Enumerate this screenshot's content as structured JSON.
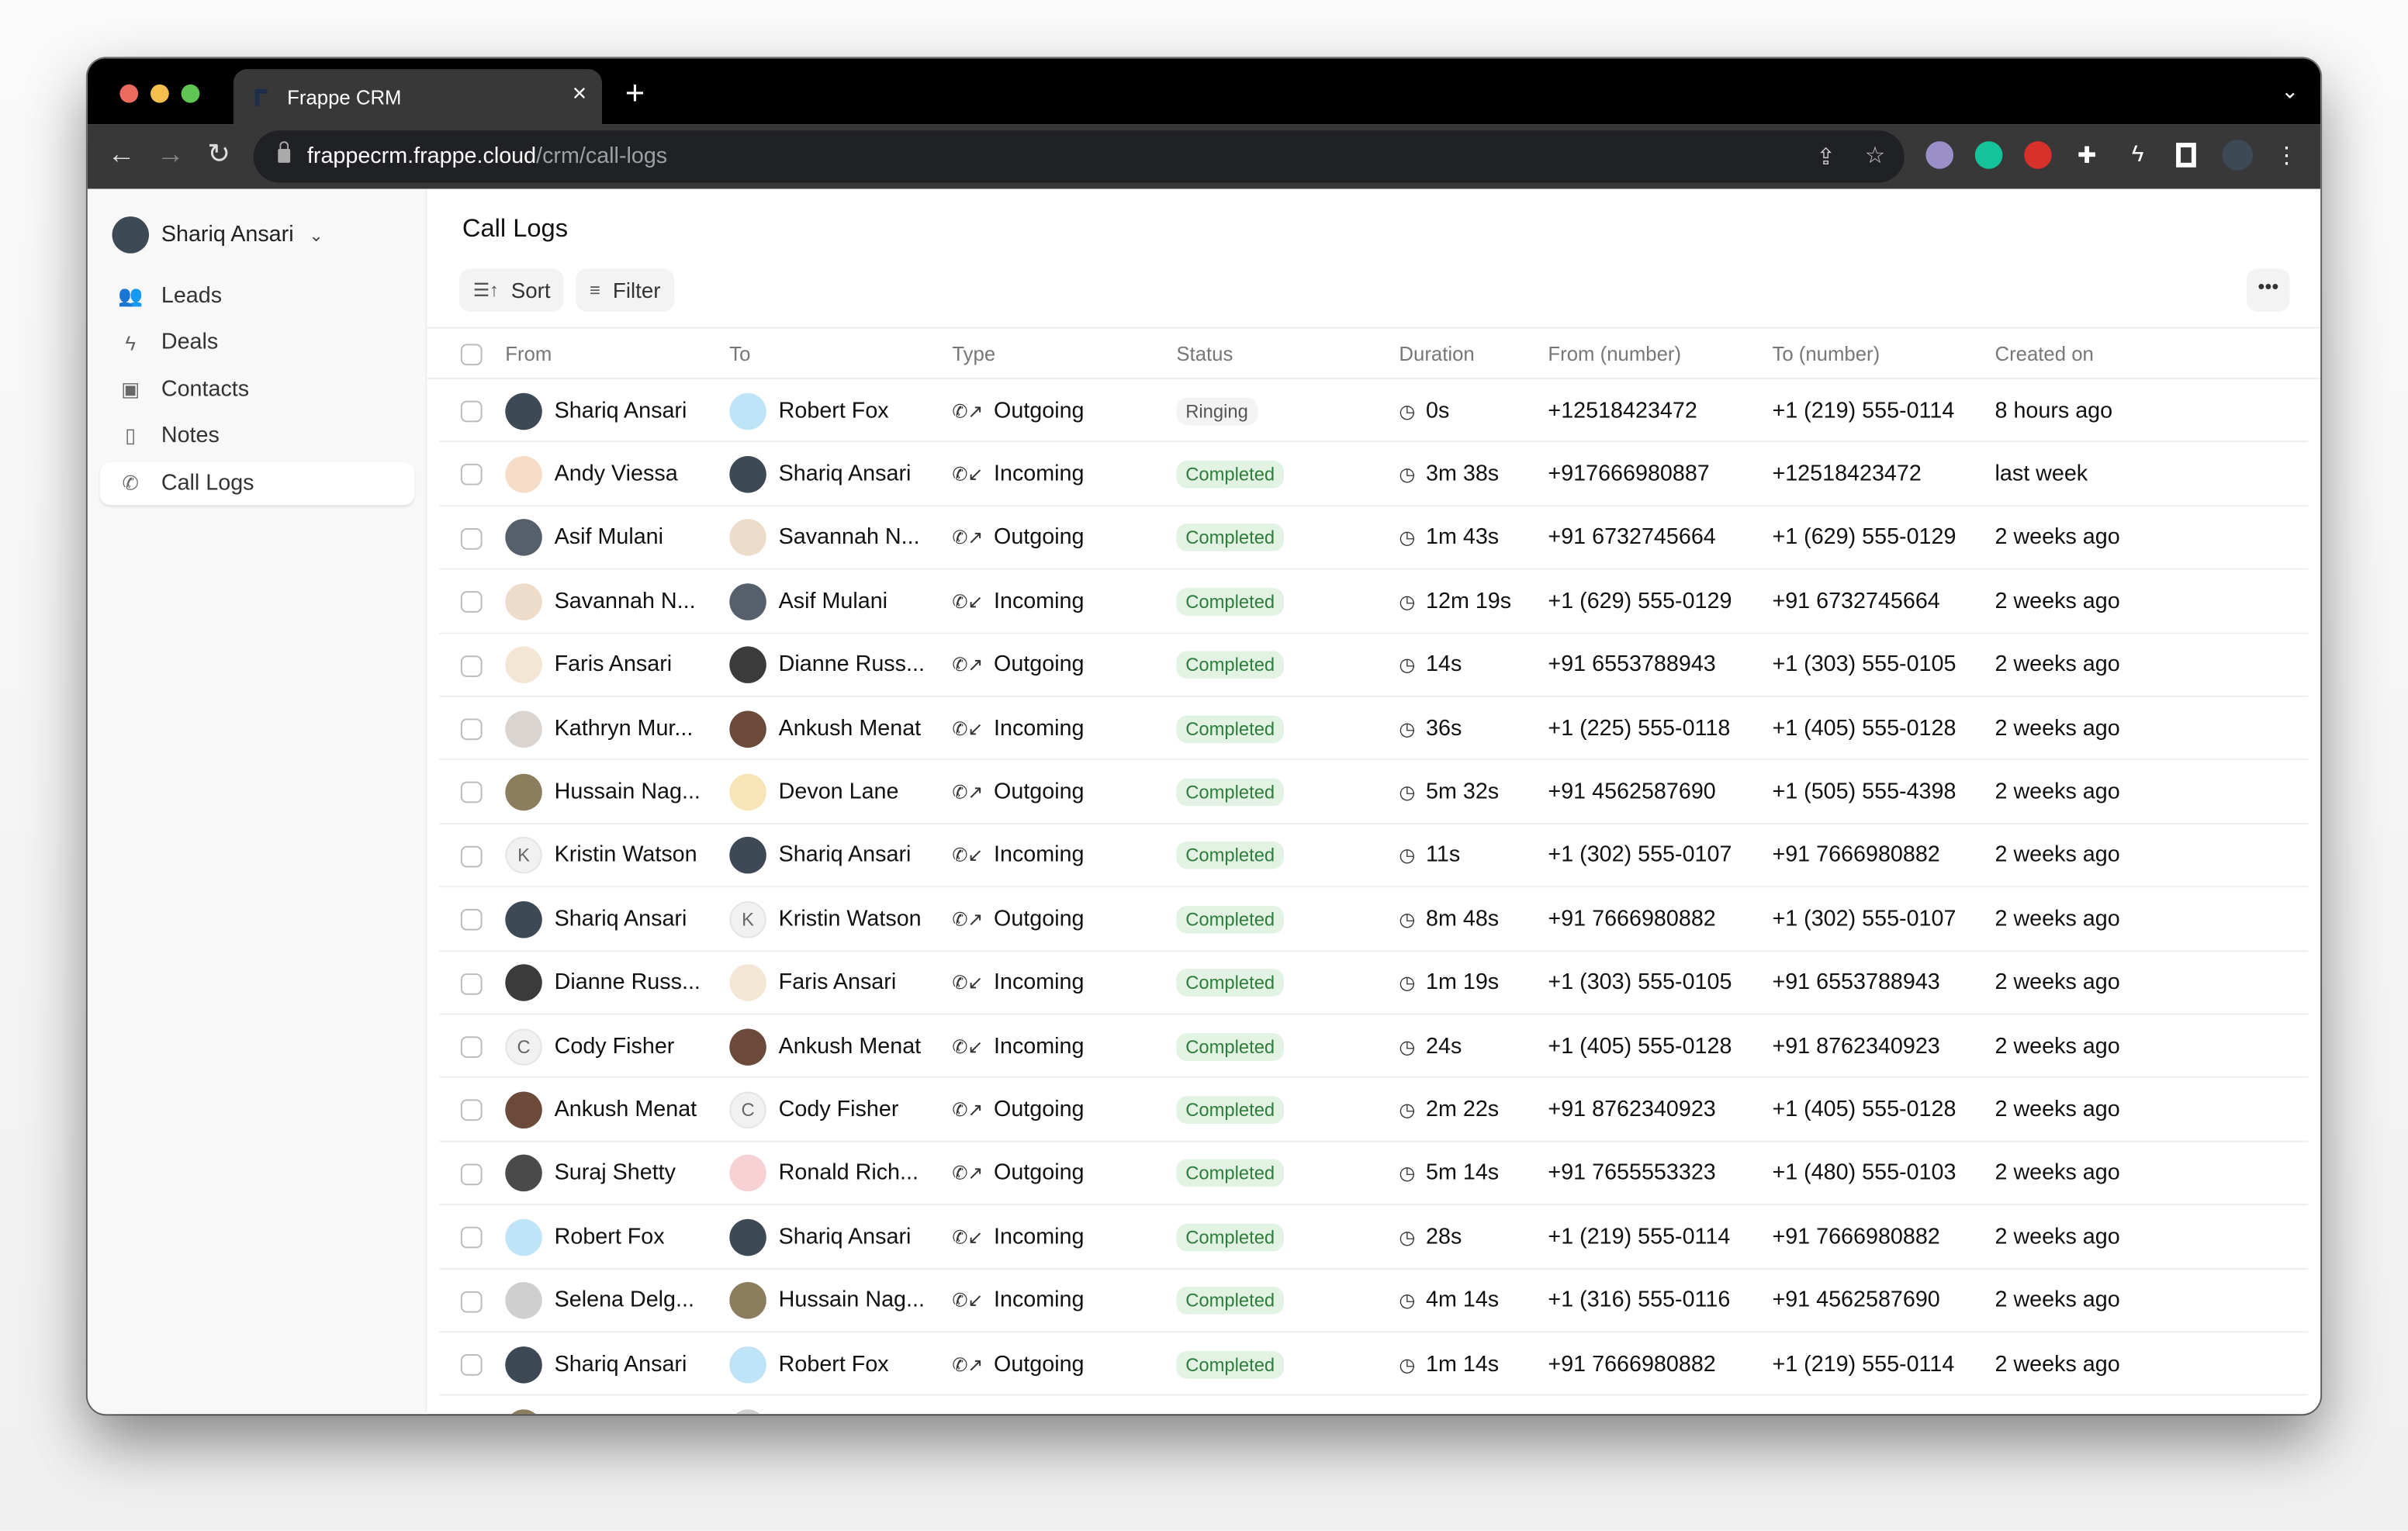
{
  "browser": {
    "tab_title": "Frappe CRM",
    "url_host": "frappecrm.frappe.cloud",
    "url_path": "/crm/call-logs"
  },
  "sidebar": {
    "user": "Shariq Ansari",
    "items": [
      {
        "label": "Leads",
        "icon": "users-icon"
      },
      {
        "label": "Deals",
        "icon": "lightning-icon"
      },
      {
        "label": "Contacts",
        "icon": "contact-card-icon"
      },
      {
        "label": "Notes",
        "icon": "file-icon"
      },
      {
        "label": "Call Logs",
        "icon": "phone-icon",
        "active": true
      }
    ]
  },
  "main": {
    "title": "Call Logs",
    "sort_label": "Sort",
    "filter_label": "Filter",
    "columns": [
      "From",
      "To",
      "Type",
      "Status",
      "Duration",
      "From (number)",
      "To (number)",
      "Created on"
    ]
  },
  "colors": {
    "completed_bg": "#e2f2e3",
    "completed_text": "#2e7d3b",
    "ringing_bg": "#f3f3f3"
  },
  "avatar_colors": {
    "Shariq Ansari": "#3d4a55",
    "Robert Fox": "#bfe3f7",
    "Andy Viessa": "#f6dcc6",
    "Asif Mulani": "#56606a",
    "Savannah N...": "#eedccb",
    "Faris Ansari": "#f4e6d4",
    "Dianne Russ...": "#3b3b3b",
    "Kathryn Mur...": "#d9d4cf",
    "Ankush Menat": "#6b4a3a",
    "Hussain Nag...": "#8b7d5e",
    "Devon Lane": "#f7e4b7",
    "Kristin Watson": "#f1f1f1",
    "Cody Fisher": "#f1f1f1",
    "Suraj Shetty": "#4a4a4a",
    "Ronald Rich...": "#f7d0d4",
    "Selena Delg...": "#cfcfcf"
  },
  "rows": [
    {
      "from": "Shariq Ansari",
      "to": "Robert Fox",
      "type": "Outgoing",
      "status": "Ringing",
      "duration": "0s",
      "from_number": "+12518423472",
      "to_number": "+1 (219) 555-0114",
      "created": "8 hours ago"
    },
    {
      "from": "Andy Viessa",
      "to": "Shariq Ansari",
      "type": "Incoming",
      "status": "Completed",
      "duration": "3m 38s",
      "from_number": "+917666980887",
      "to_number": "+12518423472",
      "created": "last week"
    },
    {
      "from": "Asif Mulani",
      "to": "Savannah N...",
      "type": "Outgoing",
      "status": "Completed",
      "duration": "1m 43s",
      "from_number": "+91 6732745664",
      "to_number": "+1 (629) 555-0129",
      "created": "2 weeks ago"
    },
    {
      "from": "Savannah N...",
      "to": "Asif Mulani",
      "type": "Incoming",
      "status": "Completed",
      "duration": "12m 19s",
      "from_number": "+1 (629) 555-0129",
      "to_number": "+91 6732745664",
      "created": "2 weeks ago"
    },
    {
      "from": "Faris Ansari",
      "to": "Dianne Russ...",
      "type": "Outgoing",
      "status": "Completed",
      "duration": "14s",
      "from_number": "+91 6553788943",
      "to_number": "+1 (303) 555-0105",
      "created": "2 weeks ago"
    },
    {
      "from": "Kathryn Mur...",
      "to": "Ankush Menat",
      "type": "Incoming",
      "status": "Completed",
      "duration": "36s",
      "from_number": "+1 (225) 555-0118",
      "to_number": "+1 (405) 555-0128",
      "created": "2 weeks ago"
    },
    {
      "from": "Hussain Nag...",
      "to": "Devon Lane",
      "type": "Outgoing",
      "status": "Completed",
      "duration": "5m 32s",
      "from_number": "+91 4562587690",
      "to_number": "+1 (505) 555-4398",
      "created": "2 weeks ago"
    },
    {
      "from": "Kristin Watson",
      "to": "Shariq Ansari",
      "type": "Incoming",
      "status": "Completed",
      "duration": "11s",
      "from_number": "+1 (302) 555-0107",
      "to_number": "+91 7666980882",
      "created": "2 weeks ago"
    },
    {
      "from": "Shariq Ansari",
      "to": "Kristin Watson",
      "type": "Outgoing",
      "status": "Completed",
      "duration": "8m 48s",
      "from_number": "+91 7666980882",
      "to_number": "+1 (302) 555-0107",
      "created": "2 weeks ago"
    },
    {
      "from": "Dianne Russ...",
      "to": "Faris Ansari",
      "type": "Incoming",
      "status": "Completed",
      "duration": "1m 19s",
      "from_number": "+1 (303) 555-0105",
      "to_number": "+91 6553788943",
      "created": "2 weeks ago"
    },
    {
      "from": "Cody Fisher",
      "to": "Ankush Menat",
      "type": "Incoming",
      "status": "Completed",
      "duration": "24s",
      "from_number": "+1 (405) 555-0128",
      "to_number": "+91 8762340923",
      "created": "2 weeks ago"
    },
    {
      "from": "Ankush Menat",
      "to": "Cody Fisher",
      "type": "Outgoing",
      "status": "Completed",
      "duration": "2m 22s",
      "from_number": "+91 8762340923",
      "to_number": "+1 (405) 555-0128",
      "created": "2 weeks ago"
    },
    {
      "from": "Suraj Shetty",
      "to": "Ronald Rich...",
      "type": "Outgoing",
      "status": "Completed",
      "duration": "5m 14s",
      "from_number": "+91 7655553323",
      "to_number": "+1 (480) 555-0103",
      "created": "2 weeks ago"
    },
    {
      "from": "Robert Fox",
      "to": "Shariq Ansari",
      "type": "Incoming",
      "status": "Completed",
      "duration": "28s",
      "from_number": "+1 (219) 555-0114",
      "to_number": "+91 7666980882",
      "created": "2 weeks ago"
    },
    {
      "from": "Selena Delg...",
      "to": "Hussain Nag...",
      "type": "Incoming",
      "status": "Completed",
      "duration": "4m 14s",
      "from_number": "+1 (316) 555-0116",
      "to_number": "+91 4562587690",
      "created": "2 weeks ago"
    },
    {
      "from": "Shariq Ansari",
      "to": "Robert Fox",
      "type": "Outgoing",
      "status": "Completed",
      "duration": "1m 14s",
      "from_number": "+91 7666980882",
      "to_number": "+1 (219) 555-0114",
      "created": "2 weeks ago"
    }
  ]
}
